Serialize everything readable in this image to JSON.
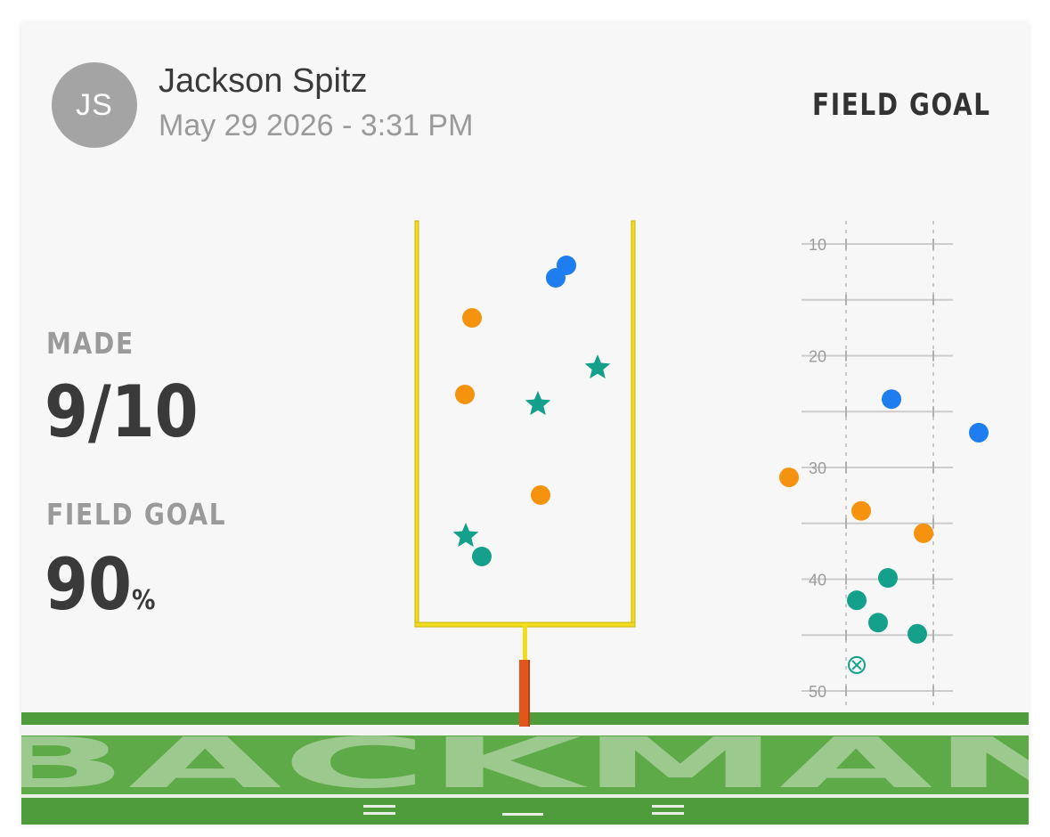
{
  "header": {
    "avatar_initials": "JS",
    "player_name": "Jackson Spitz",
    "datetime": "May 29 2026 - 3:31 PM",
    "mode_title": "FIELD GOAL"
  },
  "stats": {
    "made_label": "MADE",
    "made_value": "9/10",
    "pct_label": "FIELD GOAL",
    "pct_value": "90",
    "pct_unit": "%"
  },
  "field": {
    "end_zone_text": "BACKMAN"
  },
  "chart_data": {
    "type": "scatter",
    "yard_axis": {
      "tick_labels": [
        "10",
        "20",
        "30",
        "40",
        "50"
      ],
      "range": [
        10,
        50
      ]
    },
    "kicks": [
      {
        "color": "#1e7ef0",
        "marker": "circle",
        "yard": 25,
        "result": "made"
      },
      {
        "color": "#1e7ef0",
        "marker": "circle",
        "yard": 28,
        "result": "made"
      },
      {
        "color": "#f5930f",
        "marker": "circle",
        "yard": 32,
        "result": "made"
      },
      {
        "color": "#f5930f",
        "marker": "circle",
        "yard": 35,
        "result": "made"
      },
      {
        "color": "#f5930f",
        "marker": "circle",
        "yard": 37,
        "result": "made"
      },
      {
        "color": "#14a08a",
        "marker": "circle",
        "yard": 41,
        "result": "made"
      },
      {
        "color": "#14a08a",
        "marker": "circle",
        "yard": 43,
        "result": "made"
      },
      {
        "color": "#14a08a",
        "marker": "circle",
        "yard": 45,
        "result": "made"
      },
      {
        "color": "#14a08a",
        "marker": "circle",
        "yard": 46,
        "result": "made"
      },
      {
        "color": "#14a08a",
        "marker": "x-circle",
        "yard": 48,
        "result": "missed"
      }
    ],
    "colors": {
      "blue": "#1e7ef0",
      "orange": "#f5930f",
      "teal": "#14a08a",
      "goalpost": "#f2dc1d",
      "post_base": "#e3551b",
      "turf": "#5eaa48"
    }
  }
}
